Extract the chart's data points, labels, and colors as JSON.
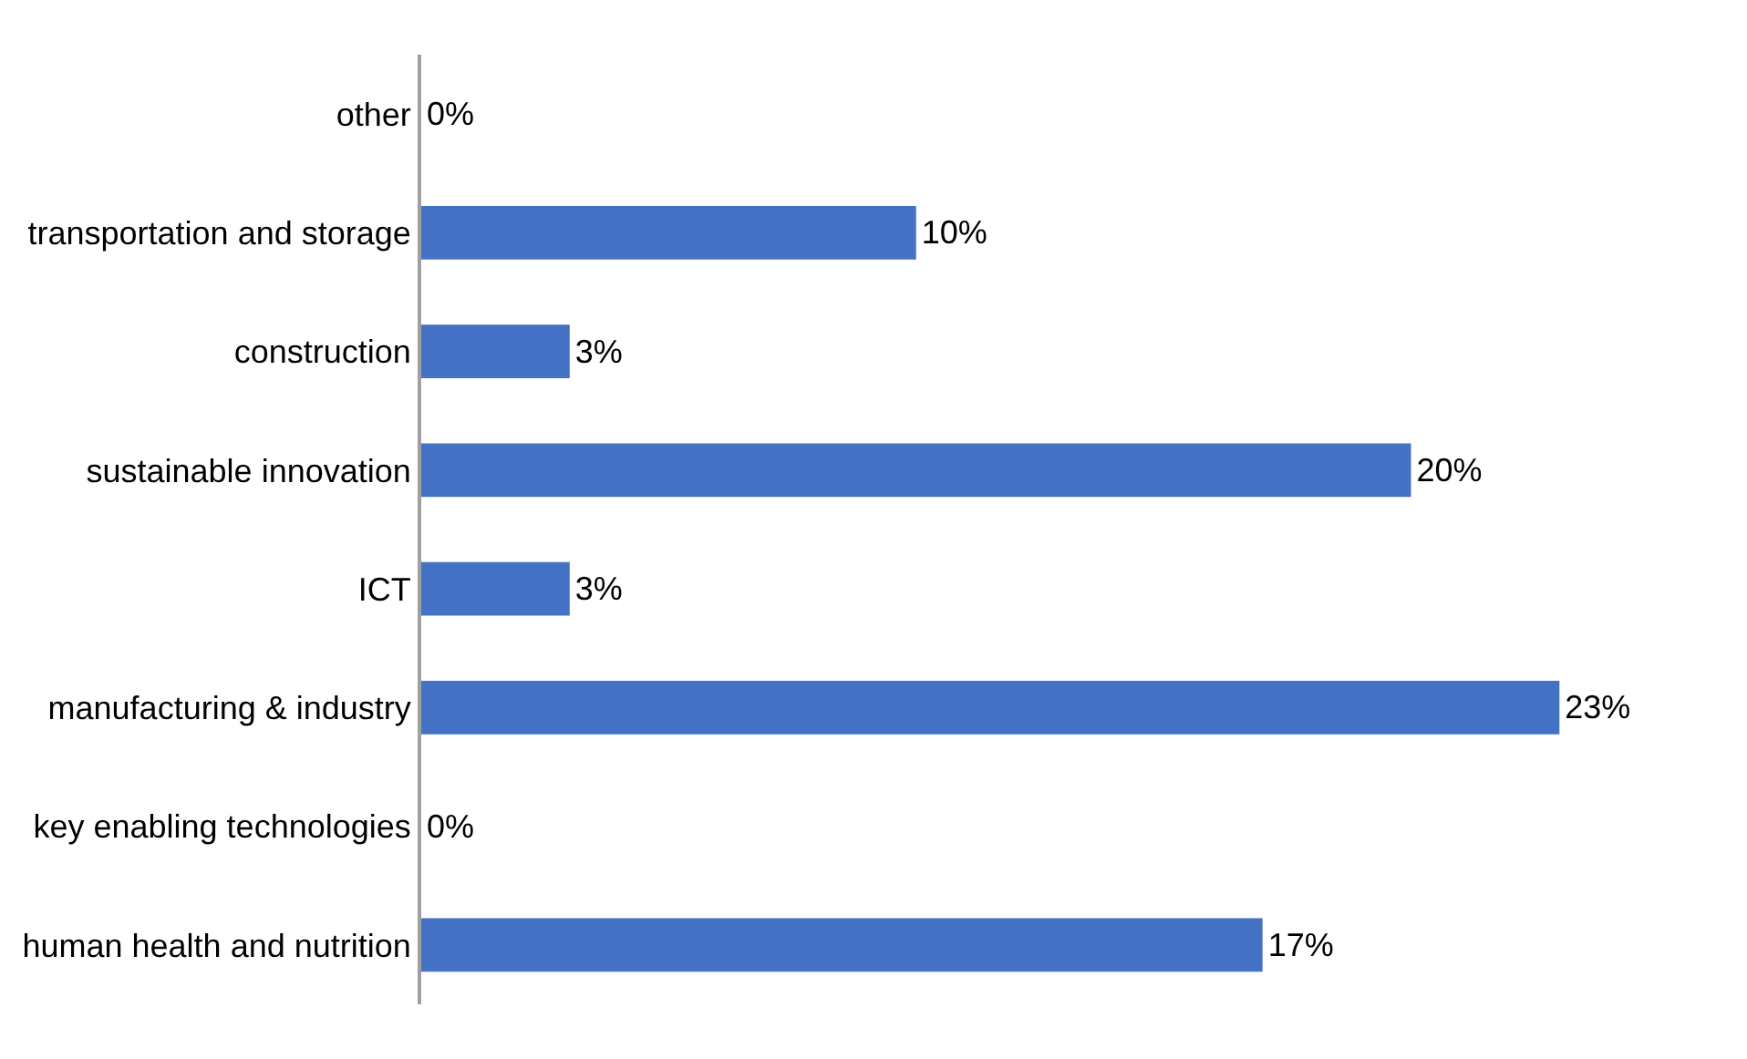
{
  "chart_data": {
    "type": "bar",
    "orientation": "horizontal",
    "categories": [
      "other",
      "transportation and storage",
      "construction",
      "sustainable innovation",
      "ICT",
      "manufacturing & industry",
      "key enabling technologies",
      "human health and nutrition"
    ],
    "values": [
      0,
      10,
      3,
      20,
      3,
      23,
      0,
      17
    ],
    "value_labels": [
      "0%",
      "10%",
      "3%",
      "20%",
      "3%",
      "23%",
      "0%",
      "17%"
    ],
    "color": "#4472c4"
  }
}
